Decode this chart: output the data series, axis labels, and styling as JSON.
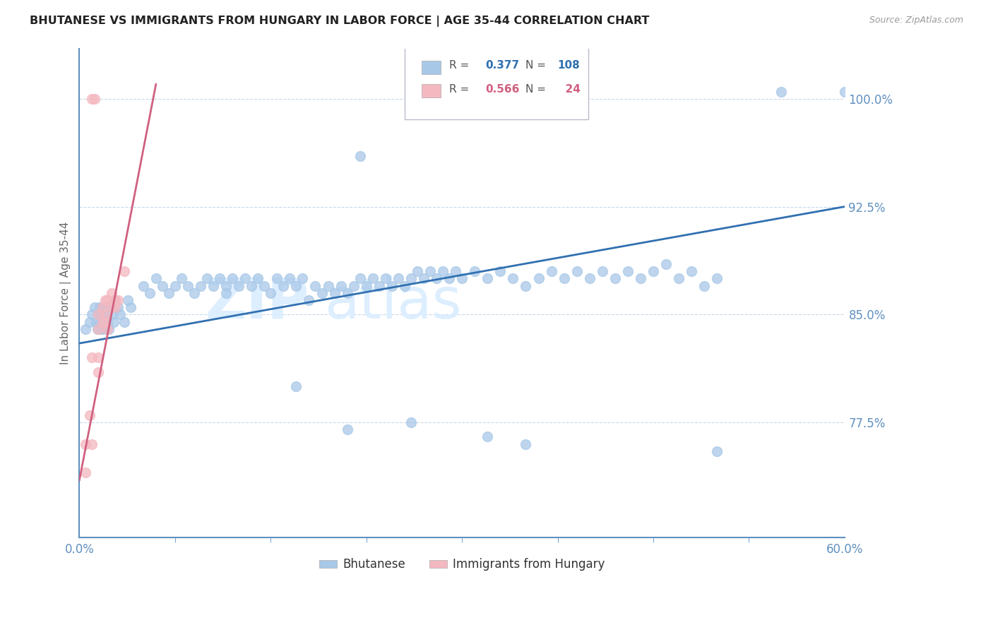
{
  "title": "BHUTANESE VS IMMIGRANTS FROM HUNGARY IN LABOR FORCE | AGE 35-44 CORRELATION CHART",
  "source": "Source: ZipAtlas.com",
  "ylabel": "In Labor Force | Age 35-44",
  "xmin": 0.0,
  "xmax": 0.6,
  "ymin": 0.695,
  "ymax": 1.035,
  "yticks": [
    0.775,
    0.85,
    0.925,
    1.0
  ],
  "ytick_labels": [
    "77.5%",
    "85.0%",
    "92.5%",
    "100.0%"
  ],
  "blue_color": "#a8c8e8",
  "pink_color": "#f4b8c0",
  "blue_line_color": "#3070b0",
  "pink_line_color": "#d06080",
  "axis_color": "#6090c0",
  "grid_color": "#c8d8e8",
  "watermark_color": "#ddeeff",
  "blue_trend_x0": 0.0,
  "blue_trend_x1": 0.6,
  "blue_trend_y0": 0.83,
  "blue_trend_y1": 0.925,
  "pink_trend_x0": 0.0,
  "pink_trend_x1": 0.06,
  "pink_trend_y0": 0.735,
  "pink_trend_y1": 1.01,
  "blue_points": [
    [
      0.005,
      0.84
    ],
    [
      0.008,
      0.845
    ],
    [
      0.01,
      0.85
    ],
    [
      0.012,
      0.855
    ],
    [
      0.013,
      0.845
    ],
    [
      0.014,
      0.84
    ],
    [
      0.015,
      0.85
    ],
    [
      0.016,
      0.855
    ],
    [
      0.016,
      0.845
    ],
    [
      0.017,
      0.84
    ],
    [
      0.018,
      0.855
    ],
    [
      0.018,
      0.85
    ],
    [
      0.019,
      0.845
    ],
    [
      0.019,
      0.84
    ],
    [
      0.02,
      0.85
    ],
    [
      0.02,
      0.855
    ],
    [
      0.021,
      0.845
    ],
    [
      0.021,
      0.85
    ],
    [
      0.022,
      0.855
    ],
    [
      0.022,
      0.845
    ],
    [
      0.023,
      0.84
    ],
    [
      0.025,
      0.855
    ],
    [
      0.026,
      0.85
    ],
    [
      0.027,
      0.845
    ],
    [
      0.028,
      0.86
    ],
    [
      0.03,
      0.855
    ],
    [
      0.032,
      0.85
    ],
    [
      0.035,
      0.845
    ],
    [
      0.038,
      0.86
    ],
    [
      0.04,
      0.855
    ],
    [
      0.05,
      0.87
    ],
    [
      0.055,
      0.865
    ],
    [
      0.06,
      0.875
    ],
    [
      0.065,
      0.87
    ],
    [
      0.07,
      0.865
    ],
    [
      0.075,
      0.87
    ],
    [
      0.08,
      0.875
    ],
    [
      0.085,
      0.87
    ],
    [
      0.09,
      0.865
    ],
    [
      0.095,
      0.87
    ],
    [
      0.1,
      0.875
    ],
    [
      0.105,
      0.87
    ],
    [
      0.11,
      0.875
    ],
    [
      0.115,
      0.87
    ],
    [
      0.115,
      0.865
    ],
    [
      0.12,
      0.875
    ],
    [
      0.125,
      0.87
    ],
    [
      0.13,
      0.875
    ],
    [
      0.135,
      0.87
    ],
    [
      0.14,
      0.875
    ],
    [
      0.145,
      0.87
    ],
    [
      0.15,
      0.865
    ],
    [
      0.155,
      0.875
    ],
    [
      0.16,
      0.87
    ],
    [
      0.165,
      0.875
    ],
    [
      0.17,
      0.87
    ],
    [
      0.175,
      0.875
    ],
    [
      0.18,
      0.86
    ],
    [
      0.185,
      0.87
    ],
    [
      0.19,
      0.865
    ],
    [
      0.195,
      0.87
    ],
    [
      0.2,
      0.865
    ],
    [
      0.205,
      0.87
    ],
    [
      0.21,
      0.865
    ],
    [
      0.215,
      0.87
    ],
    [
      0.22,
      0.875
    ],
    [
      0.225,
      0.87
    ],
    [
      0.23,
      0.875
    ],
    [
      0.235,
      0.87
    ],
    [
      0.24,
      0.875
    ],
    [
      0.245,
      0.87
    ],
    [
      0.25,
      0.875
    ],
    [
      0.255,
      0.87
    ],
    [
      0.26,
      0.875
    ],
    [
      0.265,
      0.88
    ],
    [
      0.27,
      0.875
    ],
    [
      0.275,
      0.88
    ],
    [
      0.28,
      0.875
    ],
    [
      0.285,
      0.88
    ],
    [
      0.29,
      0.875
    ],
    [
      0.295,
      0.88
    ],
    [
      0.3,
      0.875
    ],
    [
      0.31,
      0.88
    ],
    [
      0.32,
      0.875
    ],
    [
      0.33,
      0.88
    ],
    [
      0.34,
      0.875
    ],
    [
      0.35,
      0.87
    ],
    [
      0.36,
      0.875
    ],
    [
      0.37,
      0.88
    ],
    [
      0.38,
      0.875
    ],
    [
      0.39,
      0.88
    ],
    [
      0.4,
      0.875
    ],
    [
      0.41,
      0.88
    ],
    [
      0.42,
      0.875
    ],
    [
      0.43,
      0.88
    ],
    [
      0.44,
      0.875
    ],
    [
      0.45,
      0.88
    ],
    [
      0.46,
      0.885
    ],
    [
      0.47,
      0.875
    ],
    [
      0.48,
      0.88
    ],
    [
      0.49,
      0.87
    ],
    [
      0.5,
      0.875
    ],
    [
      0.22,
      0.96
    ],
    [
      0.55,
      1.005
    ],
    [
      0.6,
      1.005
    ],
    [
      0.17,
      0.8
    ],
    [
      0.21,
      0.77
    ],
    [
      0.26,
      0.775
    ],
    [
      0.32,
      0.765
    ],
    [
      0.35,
      0.76
    ],
    [
      0.5,
      0.755
    ]
  ],
  "pink_points": [
    [
      0.005,
      0.76
    ],
    [
      0.01,
      0.82
    ],
    [
      0.01,
      0.76
    ],
    [
      0.015,
      0.84
    ],
    [
      0.015,
      0.85
    ],
    [
      0.015,
      0.81
    ],
    [
      0.015,
      0.82
    ],
    [
      0.018,
      0.855
    ],
    [
      0.018,
      0.845
    ],
    [
      0.02,
      0.86
    ],
    [
      0.02,
      0.85
    ],
    [
      0.02,
      0.845
    ],
    [
      0.022,
      0.84
    ],
    [
      0.022,
      0.86
    ],
    [
      0.025,
      0.855
    ],
    [
      0.025,
      0.865
    ],
    [
      0.028,
      0.86
    ],
    [
      0.028,
      0.855
    ],
    [
      0.03,
      0.86
    ],
    [
      0.035,
      0.88
    ],
    [
      0.005,
      0.74
    ],
    [
      0.008,
      0.78
    ],
    [
      0.01,
      1.0
    ],
    [
      0.012,
      1.0
    ]
  ]
}
